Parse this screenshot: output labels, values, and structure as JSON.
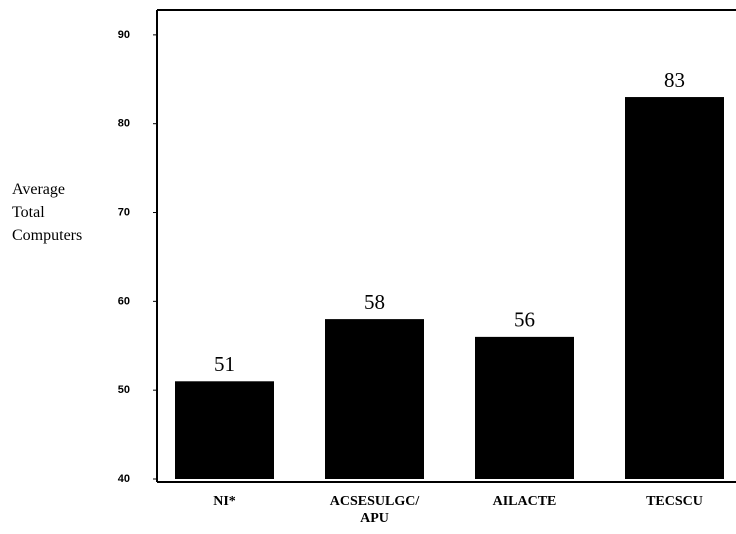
{
  "chart_data": {
    "type": "bar",
    "y_label": "Average\nTotal\nComputers",
    "categories": [
      "NI*",
      "ACSESULGC/\nAPU",
      "AILACTE",
      "TECSCU"
    ],
    "values": [
      51,
      58,
      56,
      83
    ],
    "color": "#000000",
    "ylim": [
      40,
      92.8
    ],
    "yticks": [
      40,
      50,
      60,
      70,
      80,
      90
    ]
  }
}
